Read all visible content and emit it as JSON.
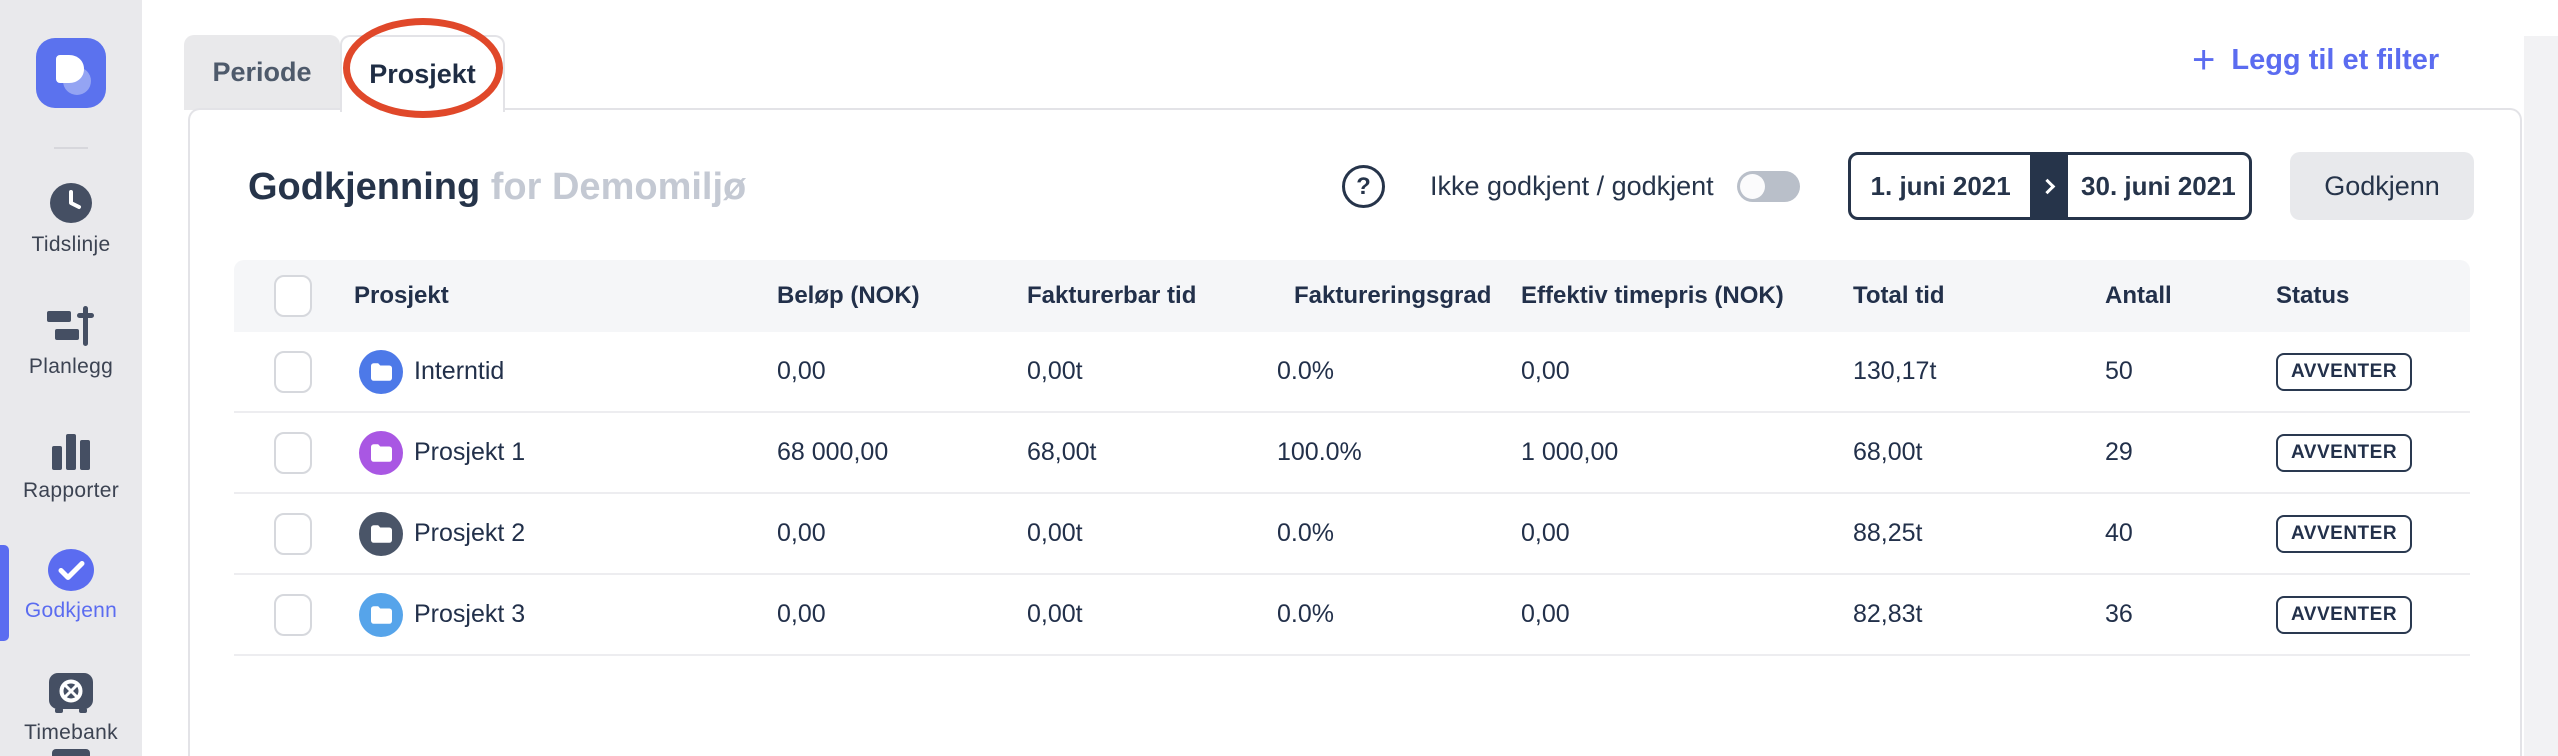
{
  "app": {
    "accent_color": "#5b6cf0"
  },
  "sidebar": {
    "items": [
      {
        "label": "Tidslinje",
        "icon": "clock-icon",
        "active": false
      },
      {
        "label": "Planlegg",
        "icon": "gantt-icon",
        "active": false
      },
      {
        "label": "Rapporter",
        "icon": "bar-chart-icon",
        "active": false
      },
      {
        "label": "Godkjenn",
        "icon": "check-circle-icon",
        "active": true
      },
      {
        "label": "Timebank",
        "icon": "vault-icon",
        "active": false
      }
    ]
  },
  "tabs": [
    {
      "label": "Periode",
      "active": false
    },
    {
      "label": "Prosjekt",
      "active": true
    }
  ],
  "annotation": {
    "shape": "ellipse",
    "target_tab": "Prosjekt",
    "color": "#e0482a"
  },
  "filter_link": {
    "icon": "plus-icon",
    "plus": "+",
    "label": "Legg til et filter"
  },
  "header": {
    "title": "Godkjenning",
    "subtitle": "for Demomiljø",
    "help_glyph": "?",
    "toggle_label": "Ikke godkjent / godkjent",
    "toggle_state": "off",
    "date_from": "1. juni 2021",
    "date_to": "30. juni 2021",
    "approve_button": "Godkjenn"
  },
  "table": {
    "columns": [
      "Prosjekt",
      "Beløp (NOK)",
      "Fakturerbar tid",
      "Faktureringsgrad",
      "Effektiv timepris (NOK)",
      "Total tid",
      "Antall",
      "Status"
    ],
    "rows": [
      {
        "checked": false,
        "project": "Interntid",
        "icon_color": "#4d79e8",
        "amount": "0,00",
        "billable_time": "0,00t",
        "billing_rate": "0.0%",
        "effective_hourly_rate": "0,00",
        "total_time": "130,17t",
        "count": "50",
        "status": "AVVENTER"
      },
      {
        "checked": false,
        "project": "Prosjekt 1",
        "icon_color": "#a957e3",
        "amount": "68 000,00",
        "billable_time": "68,00t",
        "billing_rate": "100.0%",
        "effective_hourly_rate": "1 000,00",
        "total_time": "68,00t",
        "count": "29",
        "status": "AVVENTER"
      },
      {
        "checked": false,
        "project": "Prosjekt 2",
        "icon_color": "#4a5568",
        "amount": "0,00",
        "billable_time": "0,00t",
        "billing_rate": "0.0%",
        "effective_hourly_rate": "0,00",
        "total_time": "88,25t",
        "count": "40",
        "status": "AVVENTER"
      },
      {
        "checked": false,
        "project": "Prosjekt 3",
        "icon_color": "#56a4ea",
        "amount": "0,00",
        "billable_time": "0,00t",
        "billing_rate": "0.0%",
        "effective_hourly_rate": "0,00",
        "total_time": "82,83t",
        "count": "36",
        "status": "AVVENTER"
      }
    ]
  }
}
